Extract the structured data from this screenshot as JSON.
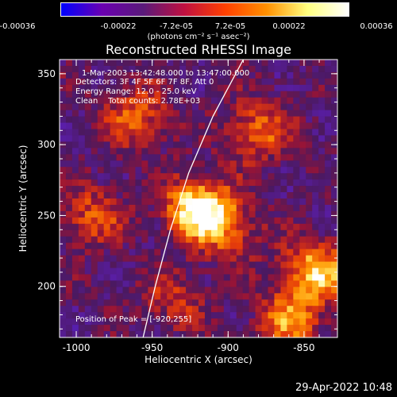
{
  "colorbar": {
    "ticks": [
      "-0.00036",
      "-0.00022",
      "-7.2e-05",
      "7.2e-05",
      "0.00022",
      "0.00036"
    ],
    "units": "(photons cm⁻² s⁻¹ asec⁻²)",
    "range": [
      -0.00036,
      0.00036
    ],
    "colors": [
      "#0000ff",
      "#6a00b0",
      "#5a1a7a",
      "#c01040",
      "#ff4000",
      "#ff9000",
      "#ffff80",
      "#ffffff"
    ]
  },
  "info": {
    "time_range": "1-Mar-2003 13:42:48.000 to 13:47:00.000",
    "detectors": "Detectors: 3F 4F 5F 6F 7F 8F, Att 0",
    "energy": "Energy Range: 12.0 - 25.0 keV",
    "clean": "Clean    Total counts: 2.78E+03",
    "peak": "Position of Peak = [-920,255]"
  },
  "timestamp": "29-Apr-2022 10:48",
  "chart_data": {
    "type": "heatmap",
    "title": "Reconstructed RHESSI Image",
    "xlabel": "Heliocentric X (arcsec)",
    "ylabel": "Heliocentric Y (arcsec)",
    "xlim": [
      -1011,
      -828
    ],
    "ylim": [
      164,
      360
    ],
    "x_ticks": [
      "-1000",
      "-950",
      "-900",
      "-850"
    ],
    "x_tick_values": [
      -1000,
      -950,
      -900,
      -850
    ],
    "y_ticks": [
      "200",
      "250",
      "300",
      "350"
    ],
    "y_tick_values": [
      200,
      250,
      300,
      350
    ],
    "grid": false,
    "limb_curve": [
      [
        -956,
        164
      ],
      [
        -948,
        200
      ],
      [
        -938,
        240
      ],
      [
        -926,
        280
      ],
      [
        -910,
        320
      ],
      [
        -890,
        360
      ]
    ],
    "peak": [
      -920,
      255
    ],
    "sources": [
      {
        "x": -920,
        "y": 255,
        "intensity": 1.0
      },
      {
        "x": -842,
        "y": 210,
        "intensity": 0.8
      },
      {
        "x": -880,
        "y": 310,
        "intensity": 0.55
      },
      {
        "x": -960,
        "y": 320,
        "intensity": 0.5
      },
      {
        "x": -990,
        "y": 250,
        "intensity": 0.45
      },
      {
        "x": -900,
        "y": 240,
        "intensity": 0.45
      },
      {
        "x": -935,
        "y": 190,
        "intensity": 0.35
      },
      {
        "x": -860,
        "y": 175,
        "intensity": 0.6
      }
    ]
  }
}
